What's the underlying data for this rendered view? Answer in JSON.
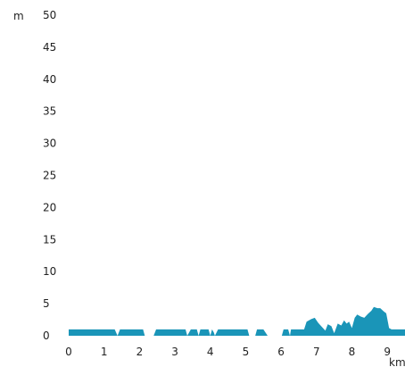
{
  "chart_data": {
    "type": "area",
    "xlabel": "km",
    "ylabel": "m",
    "xlim": [
      0,
      9.5
    ],
    "ylim": [
      0,
      50
    ],
    "x_ticks": [
      0,
      1,
      2,
      3,
      4,
      5,
      6,
      7,
      8,
      9
    ],
    "y_ticks": [
      0,
      5,
      10,
      15,
      20,
      25,
      30,
      35,
      40,
      45,
      50
    ],
    "grid": false,
    "legend": "none",
    "fill_color": "#1a95b8",
    "segments": [
      [
        [
          0.0,
          1.0
        ],
        [
          1.3,
          1.0
        ],
        [
          1.38,
          0.0
        ],
        [
          1.45,
          1.0
        ],
        [
          2.1,
          1.0
        ],
        [
          2.15,
          0.0
        ]
      ],
      [
        [
          2.4,
          0.0
        ],
        [
          2.47,
          1.0
        ],
        [
          3.3,
          1.0
        ],
        [
          3.35,
          0.0
        ]
      ],
      [
        [
          3.35,
          0.0
        ],
        [
          3.45,
          1.0
        ],
        [
          3.62,
          1.0
        ],
        [
          3.67,
          0.0
        ],
        [
          3.72,
          1.0
        ],
        [
          3.95,
          1.0
        ],
        [
          4.0,
          0.0
        ],
        [
          4.05,
          1.0
        ],
        [
          4.1,
          0.5
        ],
        [
          4.13,
          0.0
        ]
      ],
      [
        [
          4.13,
          0.0
        ],
        [
          4.22,
          1.0
        ],
        [
          5.05,
          1.0
        ],
        [
          5.1,
          0.0
        ]
      ],
      [
        [
          5.27,
          0.0
        ],
        [
          5.32,
          1.0
        ],
        [
          5.5,
          1.0
        ],
        [
          5.62,
          0.0
        ]
      ],
      [
        [
          6.02,
          0.0
        ],
        [
          6.07,
          1.0
        ],
        [
          6.2,
          1.0
        ],
        [
          6.25,
          0.0
        ],
        [
          6.28,
          1.0
        ],
        [
          6.65,
          1.0
        ],
        [
          6.72,
          2.2
        ],
        [
          6.85,
          2.6
        ],
        [
          6.95,
          2.8
        ],
        [
          7.05,
          2.0
        ],
        [
          7.15,
          1.4
        ],
        [
          7.25,
          0.8
        ],
        [
          7.32,
          1.8
        ],
        [
          7.42,
          1.5
        ],
        [
          7.5,
          0.4
        ],
        [
          7.6,
          1.9
        ],
        [
          7.7,
          1.6
        ],
        [
          7.78,
          2.4
        ],
        [
          7.85,
          1.9
        ],
        [
          7.92,
          2.2
        ],
        [
          8.0,
          1.2
        ],
        [
          8.08,
          2.8
        ],
        [
          8.15,
          3.3
        ],
        [
          8.25,
          3.0
        ],
        [
          8.35,
          2.8
        ],
        [
          8.45,
          3.4
        ],
        [
          8.55,
          3.9
        ],
        [
          8.62,
          4.5
        ],
        [
          8.72,
          4.3
        ],
        [
          8.8,
          4.3
        ],
        [
          8.9,
          3.8
        ],
        [
          8.97,
          3.5
        ],
        [
          9.05,
          1.2
        ],
        [
          9.12,
          1.0
        ],
        [
          9.5,
          1.0
        ]
      ]
    ]
  }
}
